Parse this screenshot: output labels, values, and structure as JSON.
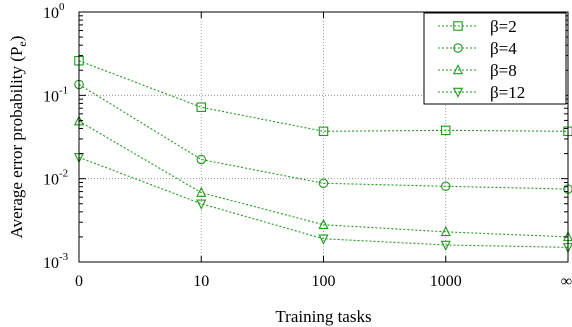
{
  "chart_data": {
    "type": "line",
    "xlabel": "Training tasks",
    "ylabel": "Average error probability (P",
    "ylabel_sub": "e",
    "ylabel_close": ")",
    "y_scale": "log",
    "ylim": [
      0.001,
      1
    ],
    "categories": [
      "0",
      "10",
      "100",
      "1000",
      "∞"
    ],
    "y_ticks": [
      {
        "base": "10",
        "exp": "-3",
        "value": 0.001
      },
      {
        "base": "10",
        "exp": "-2",
        "value": 0.01
      },
      {
        "base": "10",
        "exp": "-1",
        "value": 0.1
      },
      {
        "base": "10",
        "exp": "0",
        "value": 1
      }
    ],
    "grid": true,
    "legend_position": "top-right",
    "color": "#1e9a1e",
    "series": [
      {
        "name": "β=2",
        "marker": "square",
        "values": [
          0.26,
          0.072,
          0.037,
          0.038,
          0.037
        ]
      },
      {
        "name": "β=4",
        "marker": "circle",
        "values": [
          0.135,
          0.017,
          0.0088,
          0.0081,
          0.0075
        ]
      },
      {
        "name": "β=8",
        "marker": "triangle-up",
        "values": [
          0.049,
          0.0068,
          0.0028,
          0.0023,
          0.002
        ]
      },
      {
        "name": "β=12",
        "marker": "triangle-down",
        "values": [
          0.018,
          0.005,
          0.0019,
          0.0016,
          0.0015
        ]
      }
    ]
  }
}
